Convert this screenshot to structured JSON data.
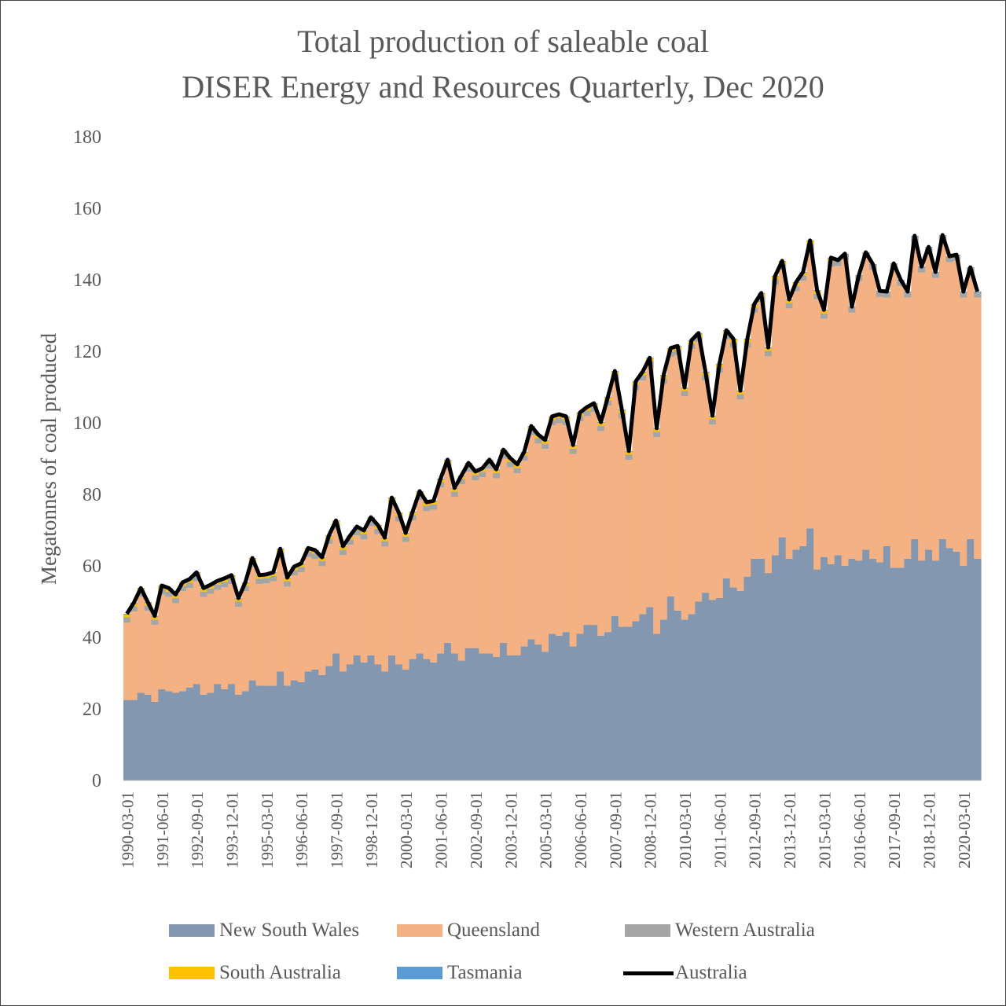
{
  "title": {
    "line1": "Total production of saleable coal",
    "line2": "DISER Energy and Resources Quarterly, Dec 2020"
  },
  "chart_data": {
    "type": "area",
    "stacked": true,
    "title": "Total production of saleable coal\nDISER Energy and Resources Quarterly, Dec 2020",
    "xlabel": "",
    "ylabel": "Megatonnes of coal produced",
    "ylim": [
      0,
      180
    ],
    "yticks": [
      "0",
      "20",
      "40",
      "60",
      "80",
      "100",
      "120",
      "140",
      "160",
      "180"
    ],
    "grid": false,
    "legend": "bottom",
    "xtick_labels": [
      "1990-03-01",
      "1991-06-01",
      "1992-09-01",
      "1993-12-01",
      "1995-03-01",
      "1996-06-01",
      "1997-09-01",
      "1998-12-01",
      "2000-03-01",
      "2001-06-01",
      "2002-09-01",
      "2003-12-01",
      "2005-03-01",
      "2006-06-01",
      "2007-09-01",
      "2008-12-01",
      "2010-03-01",
      "2011-06-01",
      "2012-09-01",
      "2013-12-01",
      "2015-03-01",
      "2016-06-01",
      "2017-09-01",
      "2018-12-01",
      "2020-03-01"
    ],
    "categories": [
      "1990-03-01",
      "1990-06-01",
      "1990-09-01",
      "1990-12-01",
      "1991-03-01",
      "1991-06-01",
      "1991-09-01",
      "1991-12-01",
      "1992-03-01",
      "1992-06-01",
      "1992-09-01",
      "1992-12-01",
      "1993-03-01",
      "1993-06-01",
      "1993-09-01",
      "1993-12-01",
      "1994-03-01",
      "1994-06-01",
      "1994-09-01",
      "1994-12-01",
      "1995-03-01",
      "1995-06-01",
      "1995-09-01",
      "1995-12-01",
      "1996-03-01",
      "1996-06-01",
      "1996-09-01",
      "1996-12-01",
      "1997-03-01",
      "1997-06-01",
      "1997-09-01",
      "1997-12-01",
      "1998-03-01",
      "1998-06-01",
      "1998-09-01",
      "1998-12-01",
      "1999-03-01",
      "1999-06-01",
      "1999-09-01",
      "1999-12-01",
      "2000-03-01",
      "2000-06-01",
      "2000-09-01",
      "2000-12-01",
      "2001-03-01",
      "2001-06-01",
      "2001-09-01",
      "2001-12-01",
      "2002-03-01",
      "2002-06-01",
      "2002-09-01",
      "2002-12-01",
      "2003-03-01",
      "2003-06-01",
      "2003-09-01",
      "2003-12-01",
      "2004-03-01",
      "2004-06-01",
      "2004-09-01",
      "2004-12-01",
      "2005-03-01",
      "2005-06-01",
      "2005-09-01",
      "2005-12-01",
      "2006-03-01",
      "2006-06-01",
      "2006-09-01",
      "2006-12-01",
      "2007-03-01",
      "2007-06-01",
      "2007-09-01",
      "2007-12-01",
      "2008-03-01",
      "2008-06-01",
      "2008-09-01",
      "2008-12-01",
      "2009-03-01",
      "2009-06-01",
      "2009-09-01",
      "2009-12-01",
      "2010-03-01",
      "2010-06-01",
      "2010-09-01",
      "2010-12-01",
      "2011-03-01",
      "2011-06-01",
      "2011-09-01",
      "2011-12-01",
      "2012-03-01",
      "2012-06-01",
      "2012-09-01",
      "2012-12-01",
      "2013-03-01",
      "2013-06-01",
      "2013-09-01",
      "2013-12-01",
      "2014-03-01",
      "2014-06-01",
      "2014-09-01",
      "2014-12-01",
      "2015-03-01",
      "2015-06-01",
      "2015-09-01",
      "2015-12-01",
      "2016-03-01",
      "2016-06-01",
      "2016-09-01",
      "2016-12-01",
      "2017-03-01",
      "2017-06-01",
      "2017-09-01",
      "2017-12-01",
      "2018-03-01",
      "2018-06-01",
      "2018-09-01",
      "2018-12-01",
      "2019-03-01",
      "2019-06-01",
      "2019-09-01",
      "2019-12-01",
      "2020-03-01",
      "2020-06-01",
      "2020-09-01"
    ],
    "series": [
      {
        "name": "New South Wales",
        "color": "#8497b0",
        "kind": "area",
        "values": [
          22.5,
          22.5,
          24.5,
          24,
          22,
          25.5,
          25,
          24.5,
          25,
          26,
          27,
          24,
          24.5,
          27,
          25.5,
          27,
          24,
          25,
          28,
          26.5,
          26.5,
          26.5,
          30.5,
          26.5,
          28,
          27.5,
          30.5,
          31,
          29.5,
          32,
          35.5,
          30.5,
          32.5,
          35,
          33,
          35,
          32.5,
          30.5,
          35,
          32.5,
          31,
          34,
          35.5,
          34,
          33,
          35.5,
          38.5,
          35.5,
          33.5,
          37,
          37,
          35.5,
          35.5,
          34.5,
          38.5,
          35,
          35,
          37.5,
          39.5,
          38,
          36,
          41,
          40.5,
          41.5,
          37.5,
          41,
          43.5,
          43.5,
          40.5,
          41.5,
          46,
          43,
          43,
          44.5,
          46.5,
          48.5,
          41,
          45,
          51.5,
          47.5,
          45,
          46.5,
          50,
          52.5,
          50.5,
          51,
          56.5,
          54,
          53,
          57,
          62,
          62,
          58,
          63,
          68,
          62,
          64.5,
          65.5,
          70.5,
          59,
          62.5,
          60.5,
          63,
          60,
          62,
          61.5,
          64.5,
          62,
          61,
          65.5,
          59.5,
          59.5,
          62,
          67.5,
          61.5,
          64.5,
          61.5,
          67.5,
          65,
          64,
          60,
          67.5,
          62
        ]
      },
      {
        "name": "Queensland",
        "color": "#f4b183",
        "kind": "area",
        "values": [
          21.6,
          24.7,
          26.8,
          23.4,
          21.5,
          26.5,
          26.3,
          25,
          27.9,
          27.8,
          28.7,
          27.3,
          27.7,
          26.3,
          28.5,
          27.9,
          24.5,
          27.9,
          31.7,
          28.4,
          28.6,
          29.2,
          31.8,
          27.7,
          29.3,
          30.7,
          32,
          30.9,
          30.4,
          34.1,
          34.7,
          32.5,
          33.4,
          33.5,
          34.4,
          36.1,
          36.4,
          34.9,
          41.6,
          39.9,
          35.7,
          38.7,
          42.9,
          41.3,
          42.7,
          46.4,
          48.7,
          43.8,
          49.3,
          49.3,
          46.9,
          49.3,
          51.7,
          50,
          51.5,
          52.6,
          50.9,
          51.9,
          57.1,
          56.2,
          56.7,
          58.3,
          59.4,
          57.8,
          53.8,
          59.4,
          58.4,
          59.5,
          57.2,
          63.3,
          66,
          58.2,
          46.6,
          64.6,
          65.3,
          67.2,
          55,
          65.9,
          66.9,
          71.5,
          62.4,
          74.1,
          72.6,
          59.3,
          49,
          63,
          66.9,
          67,
          53.5,
          64,
          68.7,
          71.8,
          60.6,
          75.6,
          74.8,
          70,
          72.3,
          74.2,
          78,
          75.6,
          66.6,
          83.2,
          80.8,
          85.6,
          68.8,
          78.1,
          81.5,
          80.7,
          74.2,
          69.5,
          83.4,
          78.8,
          73,
          83.1,
          80.5,
          83,
          79,
          83.3,
          79.9,
          81.3,
          75,
          74.3,
          73
        ]
      },
      {
        "name": "Western Australia",
        "color": "#a5a5a5",
        "kind": "area",
        "values": [
          1.5,
          1.5,
          1.5,
          1.5,
          1.5,
          1.5,
          1.5,
          1.5,
          1.5,
          1.5,
          1.5,
          1.5,
          1.5,
          1.5,
          1.5,
          1.5,
          1.5,
          1.5,
          1.5,
          1.5,
          1.5,
          1.5,
          1.5,
          1.5,
          1.5,
          1.5,
          1.5,
          1.5,
          1.5,
          1.5,
          1.5,
          1.5,
          1.5,
          1.5,
          1.5,
          1.5,
          1.5,
          1.5,
          1.5,
          1.5,
          1.5,
          1.5,
          1.5,
          1.5,
          1.5,
          1.5,
          1.5,
          1.5,
          1.5,
          1.5,
          1.5,
          1.5,
          1.5,
          1.5,
          1.5,
          1.5,
          1.5,
          1.5,
          1.5,
          1.5,
          1.5,
          1.5,
          1.5,
          1.5,
          1.5,
          1.5,
          1.5,
          1.5,
          1.5,
          1.5,
          1.5,
          1.5,
          1.5,
          1.5,
          1.5,
          1.5,
          1.5,
          1.5,
          1.5,
          1.5,
          1.5,
          1.5,
          1.5,
          1.5,
          1.5,
          1.5,
          1.5,
          1.5,
          1.5,
          1.5,
          1.5,
          1.5,
          1.5,
          1.5,
          1.5,
          1.5,
          1.5,
          1.5,
          1.5,
          1.5,
          1.5,
          1.5,
          1.5,
          1.5,
          1.5,
          1.5,
          1.5,
          1.5,
          1.5,
          1.5,
          1.5,
          1.5,
          1.5,
          1.5,
          1.5,
          1.5,
          1.5,
          1.5,
          1.5,
          1.5,
          1.5,
          1.5,
          1.5
        ]
      },
      {
        "name": "South Australia",
        "color": "#ffc000",
        "kind": "area",
        "values": [
          0.8,
          0.8,
          0.8,
          0.8,
          0.8,
          0.8,
          0.8,
          0.8,
          0.8,
          0.8,
          0.8,
          0.8,
          0.8,
          0.8,
          0.8,
          0.8,
          0.8,
          0.8,
          0.8,
          0.8,
          0.8,
          0.8,
          0.8,
          0.8,
          0.8,
          0.8,
          0.8,
          0.8,
          0.8,
          0.8,
          0.8,
          0.8,
          0.8,
          0.8,
          0.8,
          0.8,
          0.8,
          0.8,
          0.8,
          0.8,
          0.8,
          0.8,
          0.8,
          0.8,
          0.8,
          0.8,
          0.8,
          0.8,
          0.8,
          0.8,
          0.8,
          0.8,
          0.8,
          0.8,
          0.8,
          0.8,
          0.8,
          0.8,
          0.8,
          0.8,
          0.8,
          0.8,
          0.8,
          0.8,
          0.8,
          0.8,
          0.8,
          0.8,
          0.8,
          0.8,
          0.8,
          0.8,
          0.8,
          0.8,
          0.8,
          0.8,
          0.8,
          0.8,
          0.8,
          0.8,
          0.8,
          0.8,
          0.8,
          0.8,
          0.8,
          0.8,
          0.8,
          0.8,
          0.8,
          0.8,
          0.8,
          0.8,
          0.8,
          0.8,
          0.8,
          0.8,
          0.8,
          0.8,
          0.8,
          0.8,
          0.8,
          0.8,
          0,
          0,
          0,
          0,
          0,
          0,
          0,
          0,
          0,
          0,
          0,
          0,
          0,
          0,
          0,
          0,
          0,
          0,
          0,
          0,
          0
        ]
      },
      {
        "name": "Tasmania",
        "color": "#5b9bd5",
        "kind": "area",
        "values": [
          0.2,
          0.2,
          0.2,
          0.2,
          0.2,
          0.2,
          0.2,
          0.2,
          0.2,
          0.2,
          0.2,
          0.2,
          0.2,
          0.2,
          0.2,
          0.2,
          0.2,
          0.2,
          0.2,
          0.2,
          0.2,
          0.2,
          0.2,
          0.2,
          0.2,
          0.2,
          0.2,
          0.2,
          0.2,
          0.2,
          0.2,
          0.2,
          0.2,
          0.2,
          0.2,
          0.2,
          0.2,
          0.2,
          0.2,
          0.2,
          0.2,
          0.2,
          0.2,
          0.2,
          0.2,
          0.2,
          0.2,
          0.2,
          0.2,
          0.2,
          0.2,
          0.2,
          0.2,
          0.2,
          0.2,
          0.2,
          0.2,
          0.2,
          0.2,
          0.2,
          0.2,
          0.2,
          0.2,
          0.2,
          0.2,
          0.2,
          0.2,
          0.2,
          0.2,
          0.2,
          0.2,
          0.2,
          0.2,
          0.2,
          0.2,
          0.2,
          0.2,
          0.2,
          0.2,
          0.2,
          0.2,
          0.2,
          0.2,
          0.2,
          0.2,
          0.2,
          0.2,
          0.2,
          0.2,
          0.2,
          0.2,
          0.2,
          0.2,
          0.2,
          0.2,
          0.2,
          0.2,
          0.2,
          0.2,
          0.2,
          0.2,
          0.2,
          0.2,
          0.2,
          0.2,
          0.2,
          0.2,
          0.2,
          0.2,
          0.2,
          0.2,
          0.2,
          0.2,
          0.2,
          0.2,
          0.2,
          0.2,
          0.2,
          0.2,
          0.2,
          0.2,
          0.2,
          0.2
        ]
      },
      {
        "name": "Australia",
        "color": "#000000",
        "kind": "line",
        "values": [
          46.6,
          49.7,
          53.8,
          49.9,
          46,
          54.5,
          53.8,
          52,
          55.4,
          56.3,
          58.2,
          53.8,
          54.7,
          55.8,
          56.5,
          57.4,
          51,
          55.4,
          62.2,
          57.4,
          57.6,
          58.2,
          64.8,
          56.7,
          59.8,
          60.7,
          65,
          64.4,
          62.4,
          68.6,
          72.7,
          65.5,
          68.4,
          71,
          69.9,
          73.6,
          71.4,
          67.9,
          79.1,
          74.9,
          69.2,
          75.2,
          80.9,
          77.8,
          78.2,
          84.4,
          89.7,
          81.8,
          85.3,
          88.8,
          86.4,
          87.3,
          89.7,
          87,
          92.5,
          90.1,
          88.4,
          91.9,
          99.1,
          96.7,
          95.2,
          101.8,
          102.4,
          101.8,
          93.8,
          102.9,
          104.4,
          105.5,
          100.2,
          107.3,
          114.5,
          103.7,
          92.1,
          111.6,
          114.3,
          118.2,
          98.5,
          113.4,
          120.9,
          121.5,
          109.9,
          123.1,
          125.1,
          114.3,
          102,
          116.5,
          125.9,
          123.5,
          109,
          123.5,
          133.2,
          136.3,
          121.1,
          141.1,
          145.3,
          134.5,
          139.3,
          142.2,
          151,
          137.1,
          131.6,
          146.2,
          145.5,
          147.3,
          132.5,
          141.3,
          147.7,
          144.4,
          136.9,
          136.7,
          144.6,
          140,
          136.7,
          152.3,
          143.7,
          149.2,
          142.2,
          152.5,
          146.6,
          147,
          136.7,
          143.5,
          136.7
        ]
      }
    ]
  },
  "legend": [
    {
      "label": "New South Wales",
      "color": "#8497b0",
      "kind": "area"
    },
    {
      "label": "Queensland",
      "color": "#f4b183",
      "kind": "area"
    },
    {
      "label": "Western Australia",
      "color": "#a5a5a5",
      "kind": "area"
    },
    {
      "label": "South Australia",
      "color": "#ffc000",
      "kind": "area"
    },
    {
      "label": "Tasmania",
      "color": "#5b9bd5",
      "kind": "area"
    },
    {
      "label": "Australia",
      "color": "#000000",
      "kind": "line"
    }
  ]
}
